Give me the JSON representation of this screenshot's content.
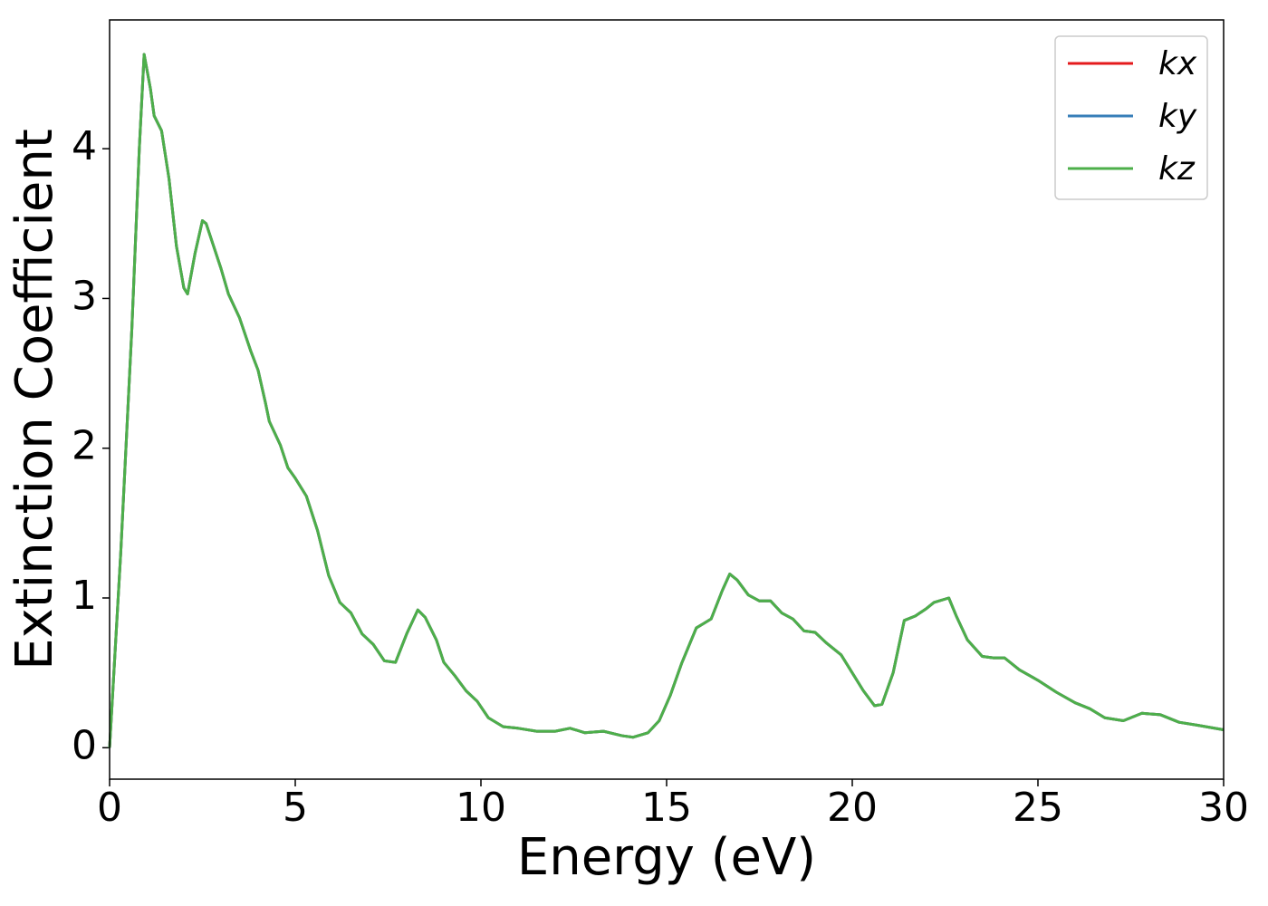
{
  "chart_data": {
    "type": "line",
    "x_label": "Energy (eV)",
    "y_label": "Extinction Coefficient",
    "x": [
      0,
      0.3,
      0.6,
      0.8,
      0.93,
      1.1,
      1.2,
      1.4,
      1.6,
      1.8,
      2.0,
      2.1,
      2.3,
      2.5,
      2.6,
      2.8,
      3.0,
      3.2,
      3.5,
      3.8,
      4.0,
      4.2,
      4.3,
      4.6,
      4.8,
      5.0,
      5.3,
      5.6,
      5.9,
      6.2,
      6.5,
      6.8,
      7.1,
      7.4,
      7.7,
      8.0,
      8.3,
      8.5,
      8.8,
      9.0,
      9.3,
      9.6,
      9.9,
      10.2,
      10.6,
      11.0,
      11.5,
      12.0,
      12.4,
      12.8,
      13.3,
      13.8,
      14.1,
      14.5,
      14.8,
      15.1,
      15.4,
      15.8,
      16.0,
      16.2,
      16.5,
      16.7,
      16.9,
      17.2,
      17.5,
      17.8,
      18.1,
      18.4,
      18.7,
      19.0,
      19.3,
      19.7,
      20.0,
      20.3,
      20.6,
      20.8,
      21.1,
      21.4,
      21.7,
      22.0,
      22.2,
      22.6,
      22.8,
      23.1,
      23.5,
      23.8,
      24.1,
      24.5,
      25.0,
      25.5,
      26.0,
      26.4,
      26.8,
      27.3,
      27.8,
      28.3,
      28.8,
      29.3,
      30.0
    ],
    "series": [
      {
        "name": "kx",
        "color": "#e41a1c",
        "values": [
          0,
          1.3,
          2.8,
          4.0,
          4.63,
          4.4,
          4.22,
          4.12,
          3.8,
          3.35,
          3.07,
          3.03,
          3.3,
          3.52,
          3.5,
          3.35,
          3.2,
          3.03,
          2.87,
          2.65,
          2.52,
          2.3,
          2.18,
          2.02,
          1.87,
          1.8,
          1.68,
          1.45,
          1.15,
          0.97,
          0.9,
          0.76,
          0.69,
          0.58,
          0.57,
          0.76,
          0.92,
          0.87,
          0.72,
          0.57,
          0.48,
          0.38,
          0.31,
          0.2,
          0.14,
          0.13,
          0.11,
          0.11,
          0.13,
          0.1,
          0.11,
          0.08,
          0.07,
          0.1,
          0.18,
          0.35,
          0.56,
          0.8,
          0.83,
          0.86,
          1.05,
          1.16,
          1.12,
          1.02,
          0.98,
          0.98,
          0.9,
          0.86,
          0.78,
          0.77,
          0.7,
          0.62,
          0.5,
          0.38,
          0.28,
          0.29,
          0.5,
          0.85,
          0.88,
          0.93,
          0.97,
          1.0,
          0.88,
          0.72,
          0.61,
          0.6,
          0.6,
          0.52,
          0.45,
          0.37,
          0.3,
          0.26,
          0.2,
          0.18,
          0.23,
          0.22,
          0.17,
          0.15,
          0.12
        ]
      },
      {
        "name": "ky",
        "color": "#377eb8",
        "values": [
          0,
          1.3,
          2.8,
          4.0,
          4.63,
          4.4,
          4.22,
          4.12,
          3.8,
          3.35,
          3.07,
          3.03,
          3.3,
          3.52,
          3.5,
          3.35,
          3.2,
          3.03,
          2.87,
          2.65,
          2.52,
          2.3,
          2.18,
          2.02,
          1.87,
          1.8,
          1.68,
          1.45,
          1.15,
          0.97,
          0.9,
          0.76,
          0.69,
          0.58,
          0.57,
          0.76,
          0.92,
          0.87,
          0.72,
          0.57,
          0.48,
          0.38,
          0.31,
          0.2,
          0.14,
          0.13,
          0.11,
          0.11,
          0.13,
          0.1,
          0.11,
          0.08,
          0.07,
          0.1,
          0.18,
          0.35,
          0.56,
          0.8,
          0.83,
          0.86,
          1.05,
          1.16,
          1.12,
          1.02,
          0.98,
          0.98,
          0.9,
          0.86,
          0.78,
          0.77,
          0.7,
          0.62,
          0.5,
          0.38,
          0.28,
          0.29,
          0.5,
          0.85,
          0.88,
          0.93,
          0.97,
          1.0,
          0.88,
          0.72,
          0.61,
          0.6,
          0.6,
          0.52,
          0.45,
          0.37,
          0.3,
          0.26,
          0.2,
          0.18,
          0.23,
          0.22,
          0.17,
          0.15,
          0.12
        ]
      },
      {
        "name": "kz",
        "color": "#4daf4a",
        "values": [
          0,
          1.3,
          2.8,
          4.0,
          4.63,
          4.4,
          4.22,
          4.12,
          3.8,
          3.35,
          3.07,
          3.03,
          3.3,
          3.52,
          3.5,
          3.35,
          3.2,
          3.03,
          2.87,
          2.65,
          2.52,
          2.3,
          2.18,
          2.02,
          1.87,
          1.8,
          1.68,
          1.45,
          1.15,
          0.97,
          0.9,
          0.76,
          0.69,
          0.58,
          0.57,
          0.76,
          0.92,
          0.87,
          0.72,
          0.57,
          0.48,
          0.38,
          0.31,
          0.2,
          0.14,
          0.13,
          0.11,
          0.11,
          0.13,
          0.1,
          0.11,
          0.08,
          0.07,
          0.1,
          0.18,
          0.35,
          0.56,
          0.8,
          0.83,
          0.86,
          1.05,
          1.16,
          1.12,
          1.02,
          0.98,
          0.98,
          0.9,
          0.86,
          0.78,
          0.77,
          0.7,
          0.62,
          0.5,
          0.38,
          0.28,
          0.29,
          0.5,
          0.85,
          0.88,
          0.93,
          0.97,
          1.0,
          0.88,
          0.72,
          0.61,
          0.6,
          0.6,
          0.52,
          0.45,
          0.37,
          0.3,
          0.26,
          0.2,
          0.18,
          0.23,
          0.22,
          0.17,
          0.15,
          0.12
        ]
      }
    ],
    "xlim": [
      0,
      30
    ],
    "xticks": [
      0,
      5,
      10,
      15,
      20,
      25,
      30
    ],
    "ylim": [
      -0.21,
      4.86
    ],
    "yticks": [
      0,
      1,
      2,
      3,
      4
    ],
    "grid": false,
    "legend": "upper right"
  }
}
